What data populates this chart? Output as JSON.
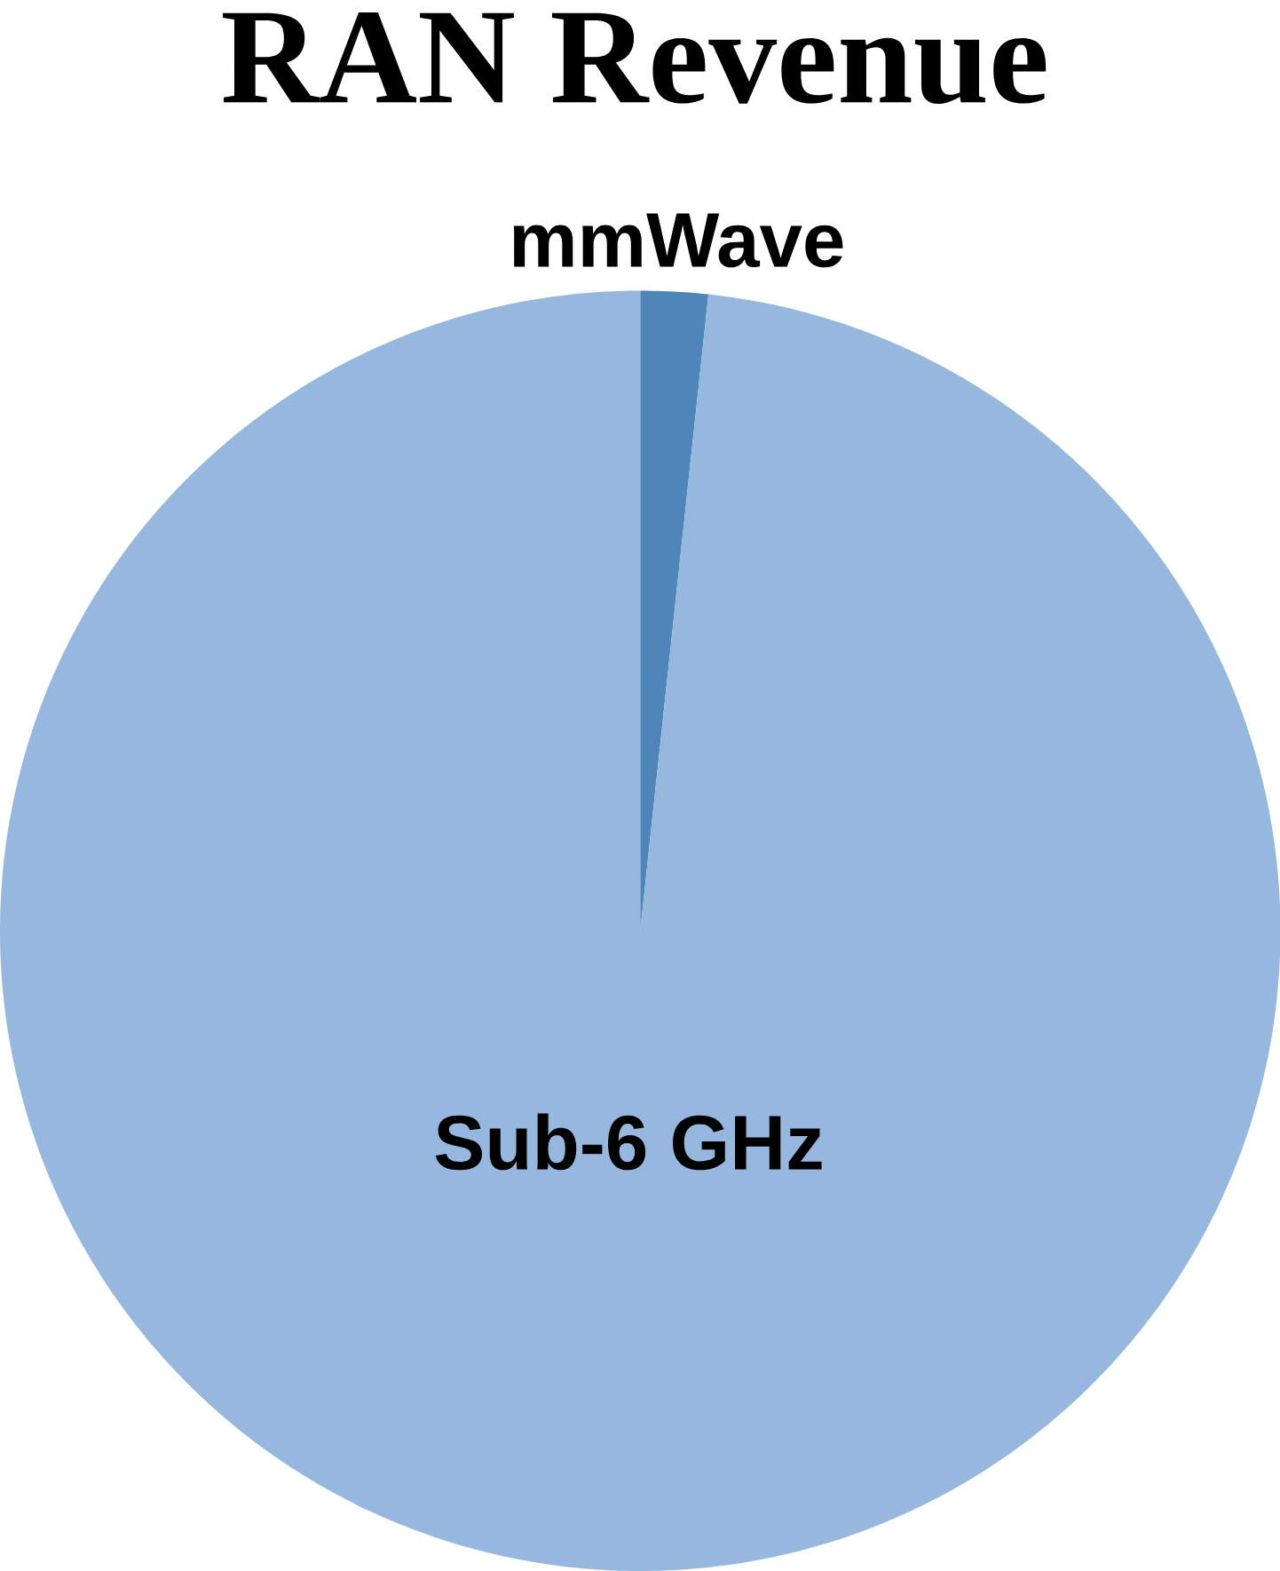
{
  "chart_data": {
    "type": "pie",
    "title": "RAN Revenue",
    "categories": [
      "mmWave",
      "Sub-6 GHz"
    ],
    "values": [
      1.7,
      98.3
    ],
    "colors": [
      "#4f86b9",
      "#97b8de"
    ]
  }
}
